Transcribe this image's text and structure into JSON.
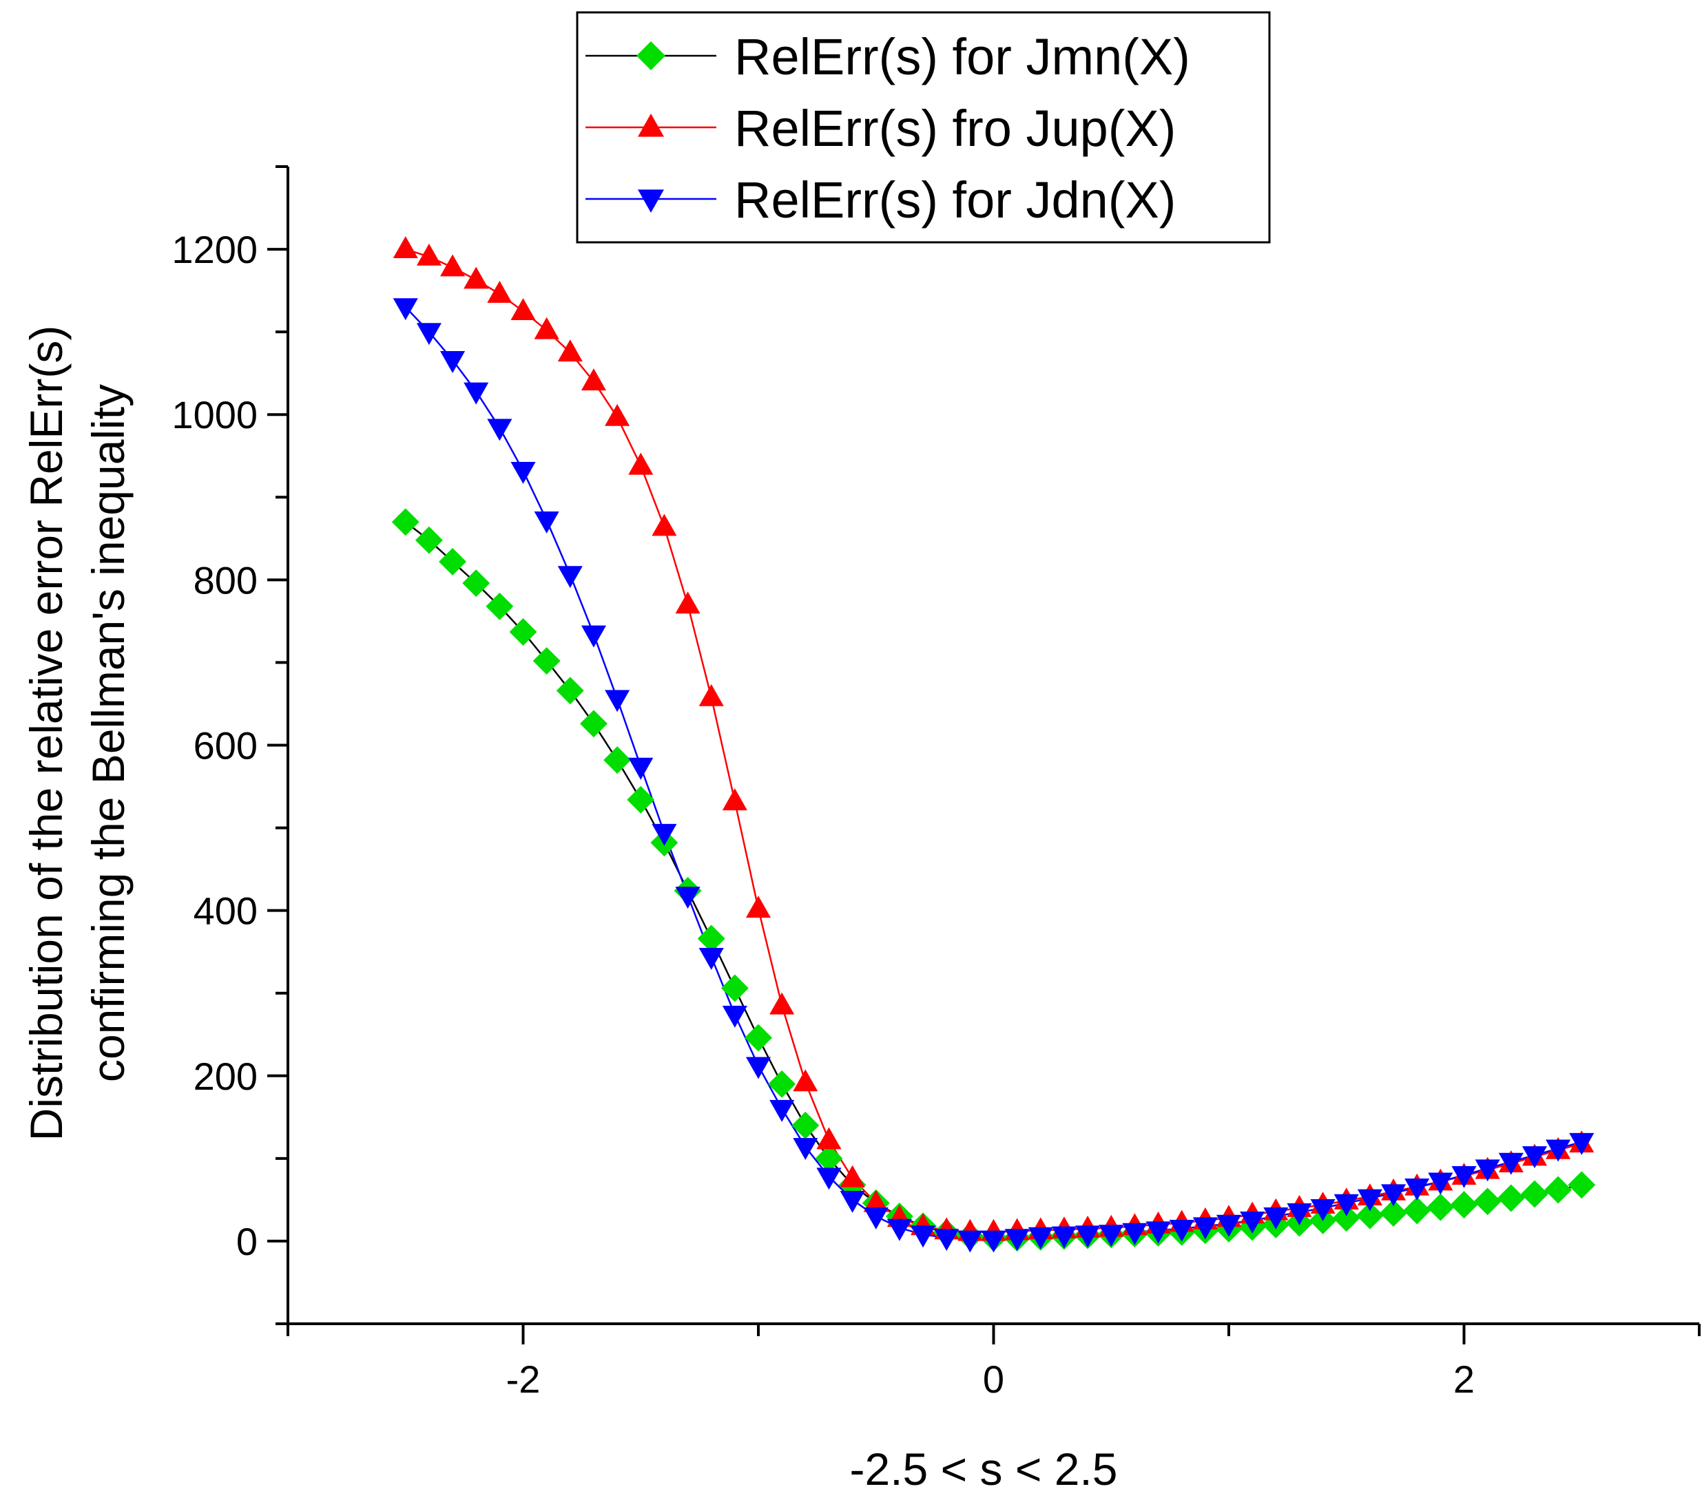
{
  "chart_data": {
    "type": "line",
    "title": "",
    "xlabel": "-2.5 < s < 2.5",
    "ylabel_line1": "Distribution of the relative error RelErr(s)",
    "ylabel_line2": "confirming the Bellman's inequality",
    "xlim": [
      -3.0,
      3.0
    ],
    "ylim": [
      -100,
      1300
    ],
    "x_major_ticks": [
      -2,
      0,
      2
    ],
    "x_tick_labels": [
      "-2",
      "0",
      "2"
    ],
    "y_major_ticks": [
      0,
      200,
      400,
      600,
      800,
      1000,
      1200
    ],
    "y_tick_labels": [
      "0",
      "200",
      "400",
      "600",
      "800",
      "1000",
      "1200"
    ],
    "grid": false,
    "legend_position": "top-center",
    "x": [
      -2.5,
      -2.4,
      -2.3,
      -2.2,
      -2.1,
      -2.0,
      -1.9,
      -1.8,
      -1.7,
      -1.6,
      -1.5,
      -1.4,
      -1.3,
      -1.2,
      -1.1,
      -1.0,
      -0.9,
      -0.8,
      -0.7,
      -0.6,
      -0.5,
      -0.4,
      -0.3,
      -0.2,
      -0.1,
      0.0,
      0.1,
      0.2,
      0.3,
      0.4,
      0.5,
      0.6,
      0.7,
      0.8,
      0.9,
      1.0,
      1.1,
      1.2,
      1.3,
      1.4,
      1.5,
      1.6,
      1.7,
      1.8,
      1.9,
      2.0,
      2.1,
      2.2,
      2.3,
      2.4,
      2.5
    ],
    "series": [
      {
        "name": "RelErr(s) for Jmn(X)",
        "color": "#00dd00",
        "line_color": "#000000",
        "marker": "diamond",
        "values": [
          870,
          848,
          822,
          796,
          768,
          737,
          702,
          666,
          626,
          582,
          534,
          482,
          424,
          366,
          306,
          246,
          190,
          140,
          100,
          68,
          46,
          30,
          18,
          10,
          6,
          4,
          4,
          5,
          6,
          7,
          8,
          9,
          10,
          11,
          13,
          15,
          17,
          20,
          22,
          25,
          28,
          31,
          34,
          37,
          41,
          44,
          48,
          52,
          57,
          62,
          68
        ]
      },
      {
        "name": "RelErr(s) fro Jup(X)",
        "color": "#ff0000",
        "line_color": "#ff0000",
        "marker": "triangle-up",
        "values": [
          1200,
          1191,
          1178,
          1163,
          1146,
          1125,
          1102,
          1075,
          1040,
          997,
          938,
          864,
          770,
          658,
          532,
          402,
          285,
          192,
          122,
          76,
          46,
          28,
          18,
          13,
          11,
          11,
          12,
          13,
          14,
          15,
          16,
          18,
          20,
          22,
          25,
          28,
          32,
          36,
          40,
          44,
          49,
          54,
          60,
          66,
          72,
          79,
          86,
          94,
          102,
          110,
          118
        ]
      },
      {
        "name": "RelErr(s) for Jdn(X)",
        "color": "#0000ff",
        "line_color": "#0000ff",
        "marker": "triangle-down",
        "values": [
          1130,
          1100,
          1066,
          1028,
          984,
          932,
          872,
          806,
          734,
          656,
          574,
          494,
          418,
          344,
          274,
          212,
          160,
          114,
          78,
          50,
          30,
          16,
          8,
          4,
          2,
          2,
          4,
          6,
          7,
          8,
          9,
          11,
          13,
          15,
          18,
          21,
          25,
          30,
          35,
          40,
          46,
          52,
          58,
          65,
          72,
          80,
          88,
          96,
          104,
          112,
          120
        ]
      }
    ]
  }
}
